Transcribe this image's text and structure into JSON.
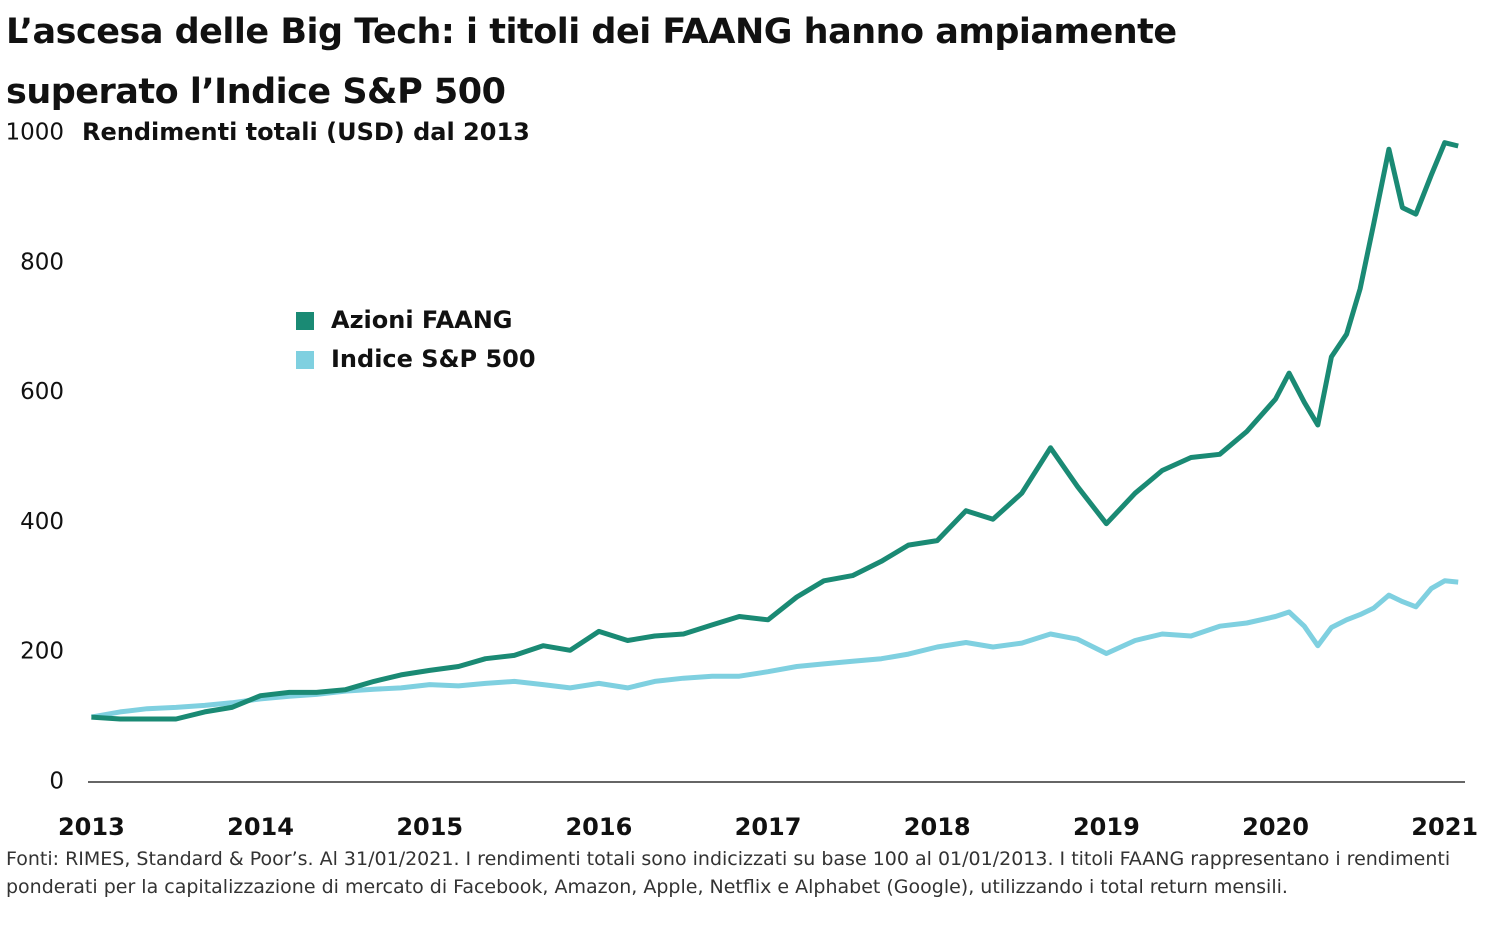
{
  "chart_data": {
    "type": "line",
    "title": "L’ascesa delle Big Tech: i titoli dei FAANG hanno ampiamente superato l’Indice S&P 500",
    "subtitle": "Rendimenti totali (USD) dal 2013",
    "source": "Fonti: RIMES, Standard & Poor’s. Al 31/01/2021. I rendimenti totali sono indicizzati su base 100 al 01/01/2013. I titoli FAANG rappresentano i rendimenti ponderati per la capitalizzazione di mercato di Facebook, Amazon, Apple, Netflix e Alphabet (Google), utilizzando i total return mensili.",
    "x": [
      2013,
      2013.17,
      2013.33,
      2013.5,
      2013.67,
      2013.83,
      2014,
      2014.17,
      2014.33,
      2014.5,
      2014.67,
      2014.83,
      2015,
      2015.17,
      2015.33,
      2015.5,
      2015.67,
      2015.83,
      2016,
      2016.17,
      2016.33,
      2016.5,
      2016.67,
      2016.83,
      2017,
      2017.17,
      2017.33,
      2017.5,
      2017.67,
      2017.83,
      2018,
      2018.17,
      2018.33,
      2018.5,
      2018.67,
      2018.83,
      2019,
      2019.17,
      2019.33,
      2019.5,
      2019.67,
      2019.83,
      2020,
      2020.08,
      2020.17,
      2020.25,
      2020.33,
      2020.42,
      2020.5,
      2020.58,
      2020.67,
      2020.75,
      2020.83,
      2020.92,
      2021,
      2021.08
    ],
    "series": [
      {
        "name": "Azioni FAANG",
        "color": "#1a8a74",
        "values": [
          100,
          97,
          97,
          97,
          108,
          115,
          133,
          138,
          138,
          142,
          155,
          165,
          172,
          178,
          190,
          195,
          210,
          203,
          232,
          218,
          225,
          228,
          242,
          255,
          250,
          285,
          310,
          318,
          340,
          365,
          372,
          418,
          405,
          445,
          515,
          455,
          398,
          445,
          480,
          500,
          505,
          540,
          590,
          630,
          585,
          550,
          655,
          690,
          760,
          860,
          975,
          885,
          875,
          935,
          985,
          980
        ]
      },
      {
        "name": "Indice S&P 500",
        "color": "#7fd0e0",
        "values": [
          100,
          108,
          113,
          115,
          118,
          122,
          128,
          132,
          135,
          140,
          143,
          145,
          150,
          148,
          152,
          155,
          150,
          145,
          152,
          145,
          155,
          160,
          163,
          163,
          170,
          178,
          182,
          186,
          190,
          197,
          208,
          215,
          208,
          214,
          228,
          220,
          198,
          218,
          228,
          225,
          240,
          245,
          255,
          262,
          240,
          210,
          238,
          250,
          258,
          268,
          288,
          278,
          270,
          298,
          310,
          308
        ]
      }
    ],
    "xlim": [
      2012.98,
      2021.12
    ],
    "xticks": [
      2013,
      2014,
      2015,
      2016,
      2017,
      2018,
      2019,
      2020,
      2021
    ],
    "ylim": [
      0,
      1000
    ],
    "yticks": [
      0,
      200,
      400,
      600,
      800,
      1000
    ]
  }
}
